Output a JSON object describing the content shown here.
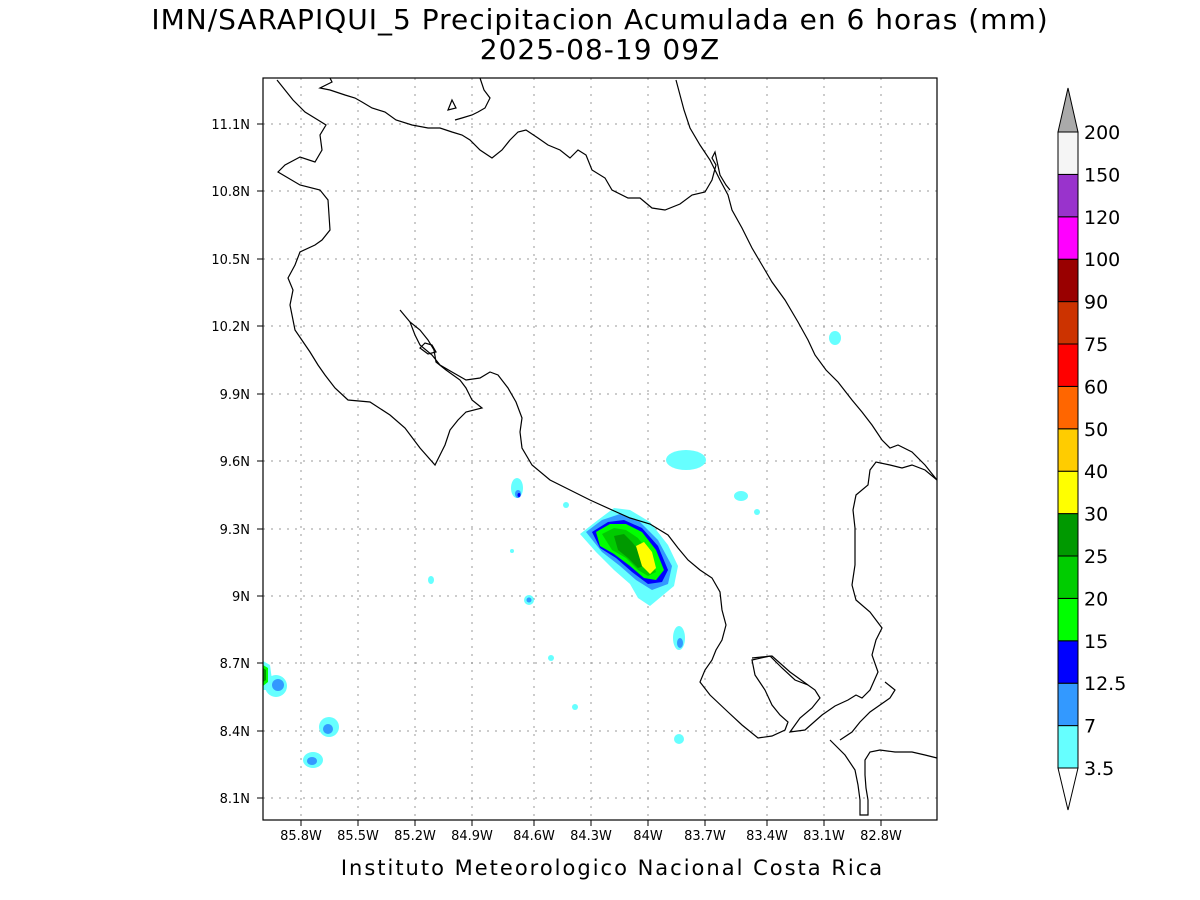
{
  "title_line1": "IMN/SARAPIQUI_5 Precipitacion Acumulada en 6 horas (mm)",
  "title_line2": "2025-08-19 09Z",
  "footer": "Instituto Meteorologico Nacional Costa Rica",
  "lat_ticks": [
    "11.1N",
    "10.8N",
    "10.5N",
    "10.2N",
    "9.9N",
    "9.6N",
    "9.3N",
    "9N",
    "8.7N",
    "8.4N",
    "8.1N"
  ],
  "lon_ticks": [
    "85.8W",
    "85.5W",
    "85.2W",
    "84.9W",
    "84.6W",
    "84.3W",
    "84W",
    "83.7W",
    "83.4W",
    "83.1W",
    "82.8W"
  ],
  "colorbar": {
    "labels": [
      "3.5",
      "7",
      "12.5",
      "15",
      "20",
      "25",
      "30",
      "40",
      "50",
      "60",
      "75",
      "90",
      "100",
      "120",
      "150",
      "200"
    ],
    "colors": [
      "#66ffff",
      "#3399ff",
      "#0000ff",
      "#00ff00",
      "#00cc00",
      "#009900",
      "#ffff00",
      "#ffcc00",
      "#ff6600",
      "#ff0000",
      "#cc3300",
      "#990000",
      "#ff00ff",
      "#9933cc",
      "#f5f5f5"
    ],
    "overflow_color": "#aaaaaa"
  }
}
